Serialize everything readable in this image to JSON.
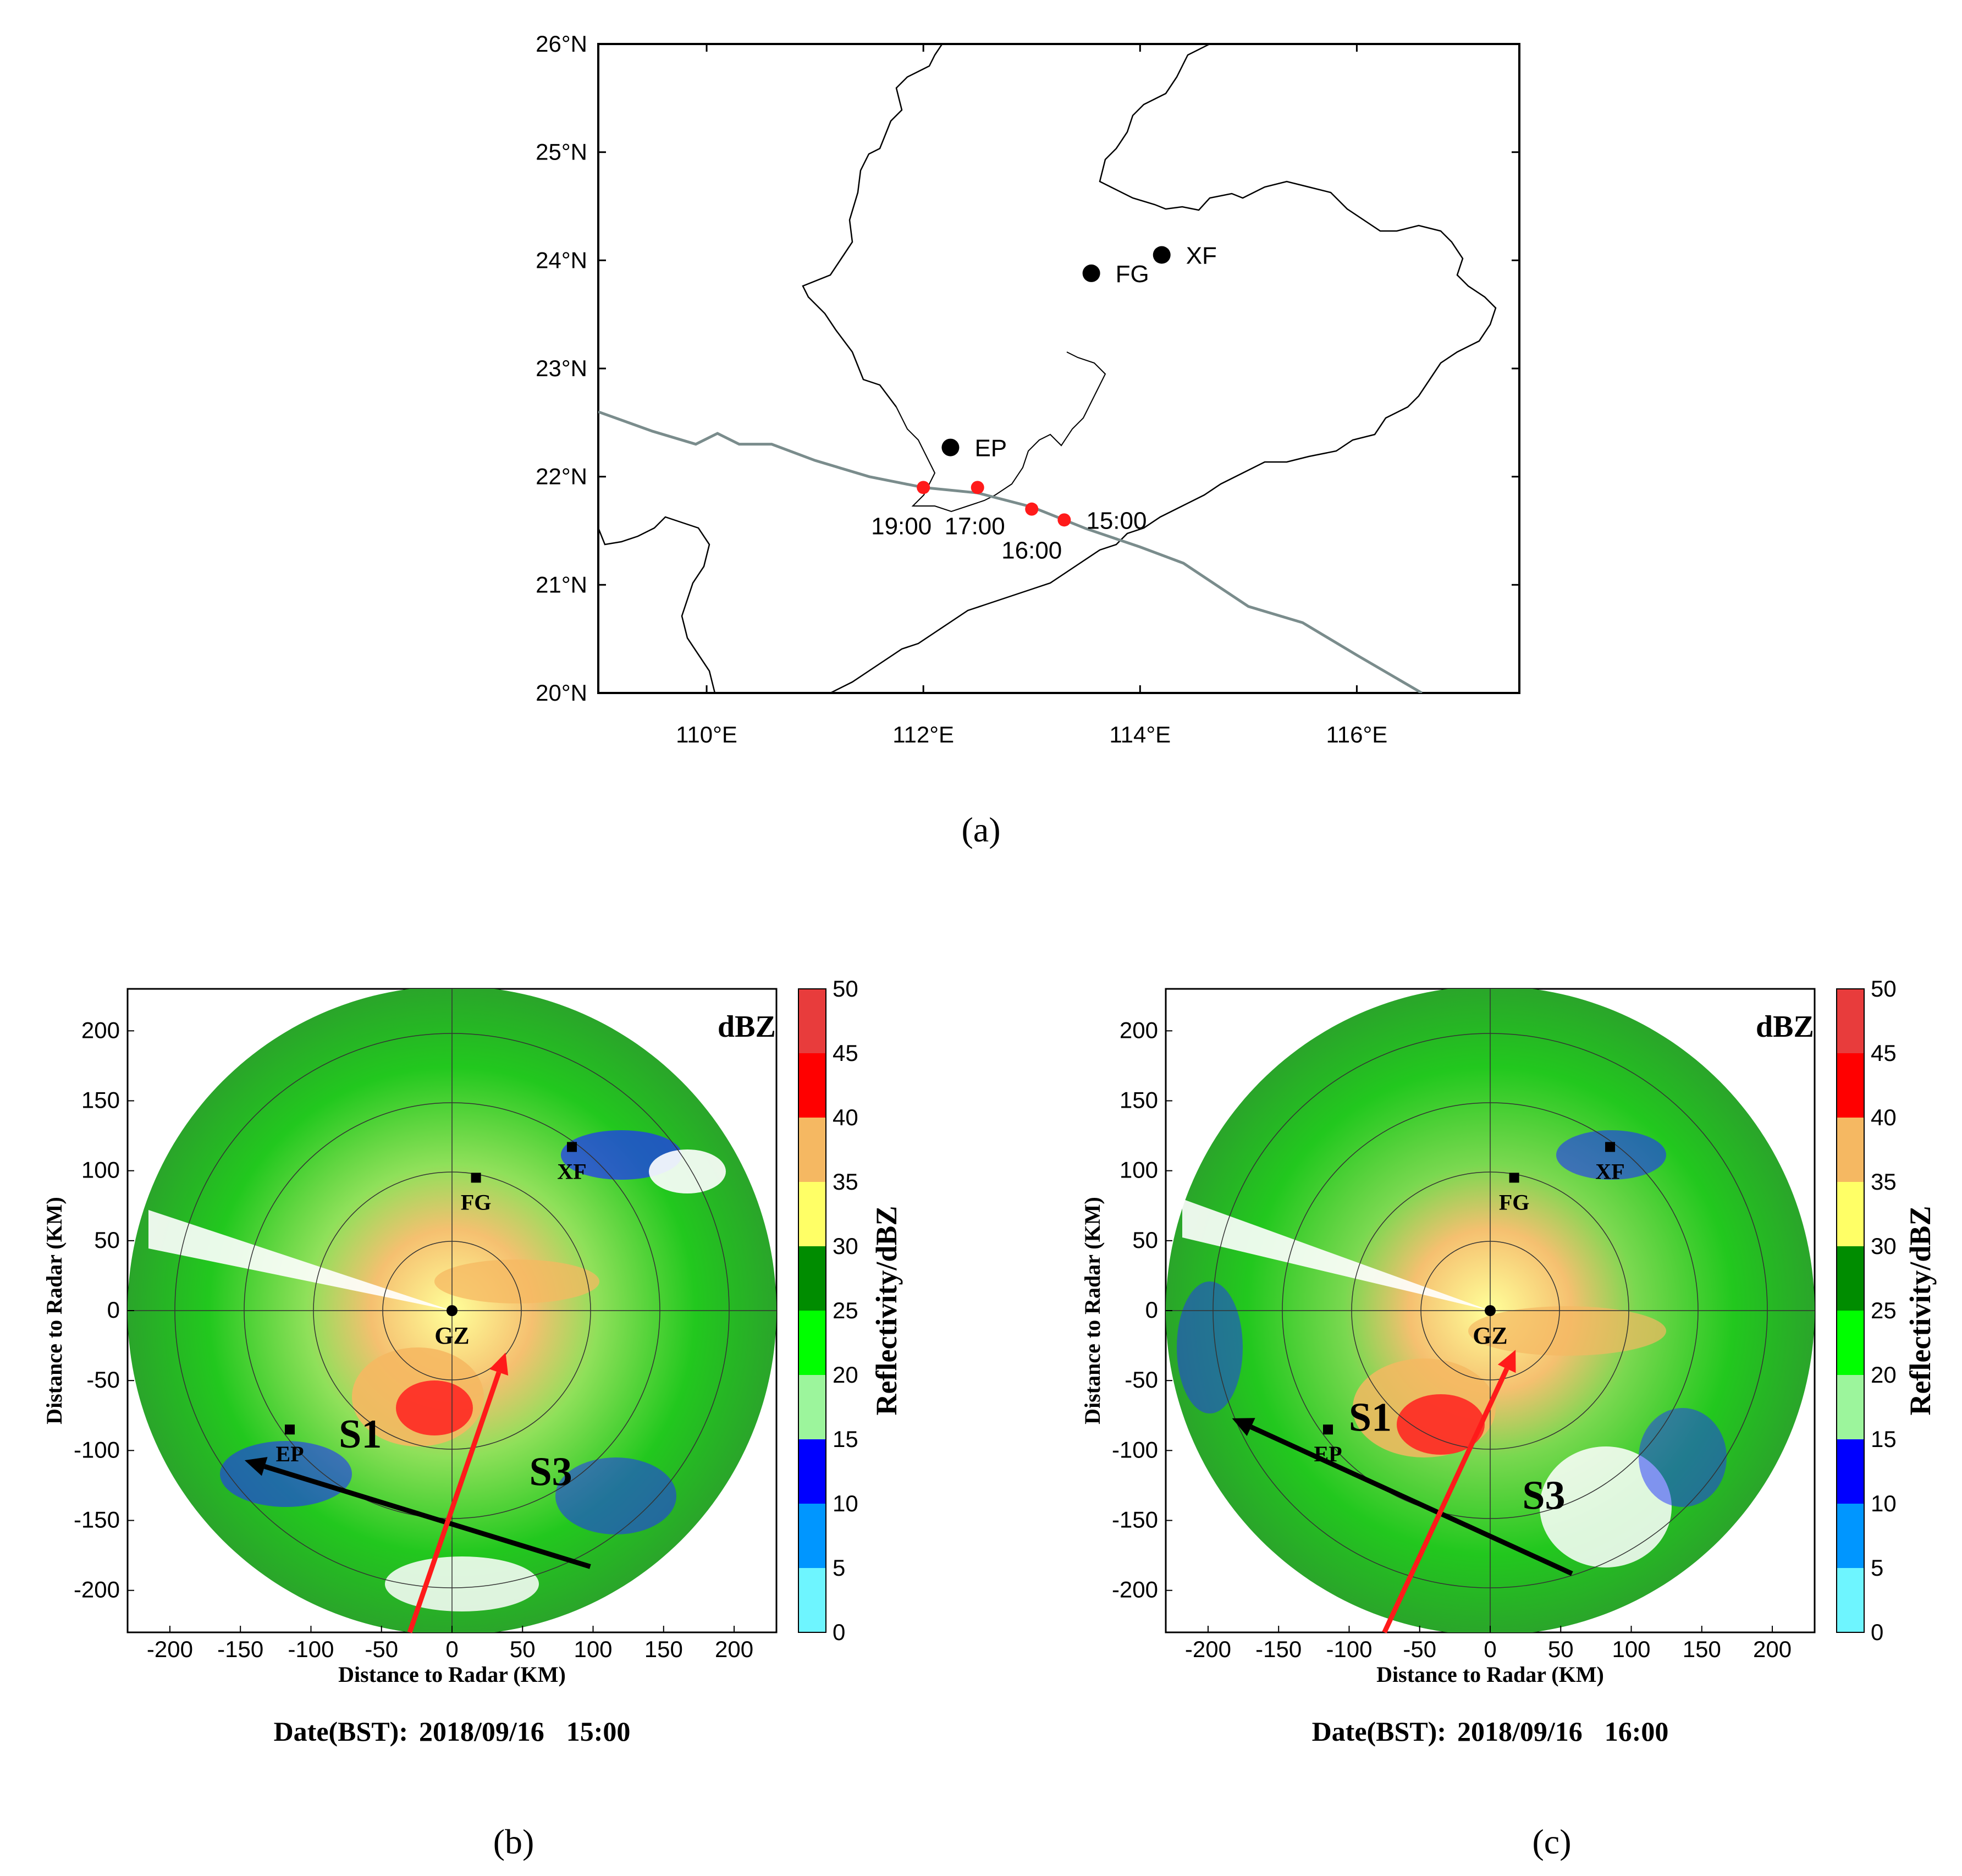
{
  "panel_a": {
    "caption": "(a)",
    "lat_ticks": [
      "26°N",
      "25°N",
      "24°N",
      "23°N",
      "22°N",
      "21°N",
      "20°N"
    ],
    "lon_ticks": [
      "110°E",
      "112°E",
      "114°E",
      "116°E"
    ],
    "lon_range": [
      109,
      117.5
    ],
    "lat_range": [
      20,
      26
    ],
    "stations": [
      {
        "name": "XF",
        "lon": 114.2,
        "lat": 24.05
      },
      {
        "name": "FG",
        "lon": 113.55,
        "lat": 23.88
      },
      {
        "name": "EP",
        "lon": 112.25,
        "lat": 22.27
      }
    ],
    "track": [
      {
        "lon": 109.0,
        "lat": 22.6
      },
      {
        "lon": 109.5,
        "lat": 22.42
      },
      {
        "lon": 109.9,
        "lat": 22.3
      },
      {
        "lon": 110.1,
        "lat": 22.4
      },
      {
        "lon": 110.3,
        "lat": 22.3
      },
      {
        "lon": 110.6,
        "lat": 22.3
      },
      {
        "lon": 111.0,
        "lat": 22.15
      },
      {
        "lon": 111.5,
        "lat": 22.0
      },
      {
        "lon": 112.0,
        "lat": 21.9
      },
      {
        "lon": 112.5,
        "lat": 21.85
      },
      {
        "lon": 113.0,
        "lat": 21.72
      },
      {
        "lon": 113.5,
        "lat": 21.52
      },
      {
        "lon": 114.0,
        "lat": 21.35
      },
      {
        "lon": 114.4,
        "lat": 21.2
      },
      {
        "lon": 115.0,
        "lat": 20.8
      },
      {
        "lon": 115.5,
        "lat": 20.65
      },
      {
        "lon": 116.0,
        "lat": 20.35
      },
      {
        "lon": 116.6,
        "lat": 20.0
      }
    ],
    "typhoon_positions": [
      {
        "time": "15:00",
        "lon": 113.3,
        "lat": 21.6
      },
      {
        "time": "16:00",
        "lon": 113.0,
        "lat": 21.7
      },
      {
        "time": "17:00",
        "lon": 112.5,
        "lat": 21.9
      },
      {
        "time": "19:00",
        "lon": 112.0,
        "lat": 21.9
      }
    ]
  },
  "radar_common": {
    "x_axis_label": "Distance to Radar (KM)",
    "y_axis_label": "Distance to Radar (KM)",
    "x_ticks": [
      "-200",
      "-150",
      "-100",
      "-50",
      "0",
      "50",
      "100",
      "150",
      "200"
    ],
    "y_ticks": [
      "200",
      "150",
      "100",
      "50",
      "0",
      "-50",
      "-100",
      "-150",
      "-200"
    ],
    "range_km": [
      -230,
      230
    ],
    "unit_label": "dBZ",
    "colorbar_title": "Reflectivity/dBZ",
    "colorbar_ticks": [
      "50",
      "45",
      "40",
      "35",
      "30",
      "25",
      "20",
      "15",
      "10",
      "5",
      "0"
    ],
    "colorbar_colors": [
      "#e83c3c",
      "#ff0000",
      "#f5b862",
      "#ffff66",
      "#008c00",
      "#00ff00",
      "#9cf59c",
      "#0000ff",
      "#0096ff",
      "#6ef5ff"
    ],
    "radar_site": "GZ",
    "stations": [
      {
        "name": "FG",
        "x": 17,
        "y": 95
      },
      {
        "name": "XF",
        "x": 85,
        "y": 117
      },
      {
        "name": "EP",
        "x": -115,
        "y": -85
      }
    ]
  },
  "panel_b": {
    "caption": "(b)",
    "date_label": "Date(BST):",
    "date_value": "2018/09/16",
    "time_value": "15:00",
    "storm_labels": [
      {
        "text": "S1",
        "x": -65,
        "y": -88
      },
      {
        "text": "S3",
        "x": 70,
        "y": -115
      }
    ],
    "black_arrow": {
      "from": [
        98,
        -183
      ],
      "to": [
        -147,
        -107
      ]
    },
    "red_arrow": {
      "from": [
        -30,
        -230
      ],
      "to": [
        38,
        -30
      ]
    }
  },
  "panel_c": {
    "caption": "(c)",
    "date_label": "Date(BST):",
    "date_value": "2018/09/16",
    "time_value": "16:00",
    "storm_labels": [
      {
        "text": "S1",
        "x": -85,
        "y": -76
      },
      {
        "text": "S3",
        "x": 38,
        "y": -132
      }
    ],
    "black_arrow": {
      "from": [
        58,
        -188
      ],
      "to": [
        -183,
        -77
      ]
    },
    "red_arrow": {
      "from": [
        -75,
        -230
      ],
      "to": [
        18,
        -28
      ]
    }
  }
}
